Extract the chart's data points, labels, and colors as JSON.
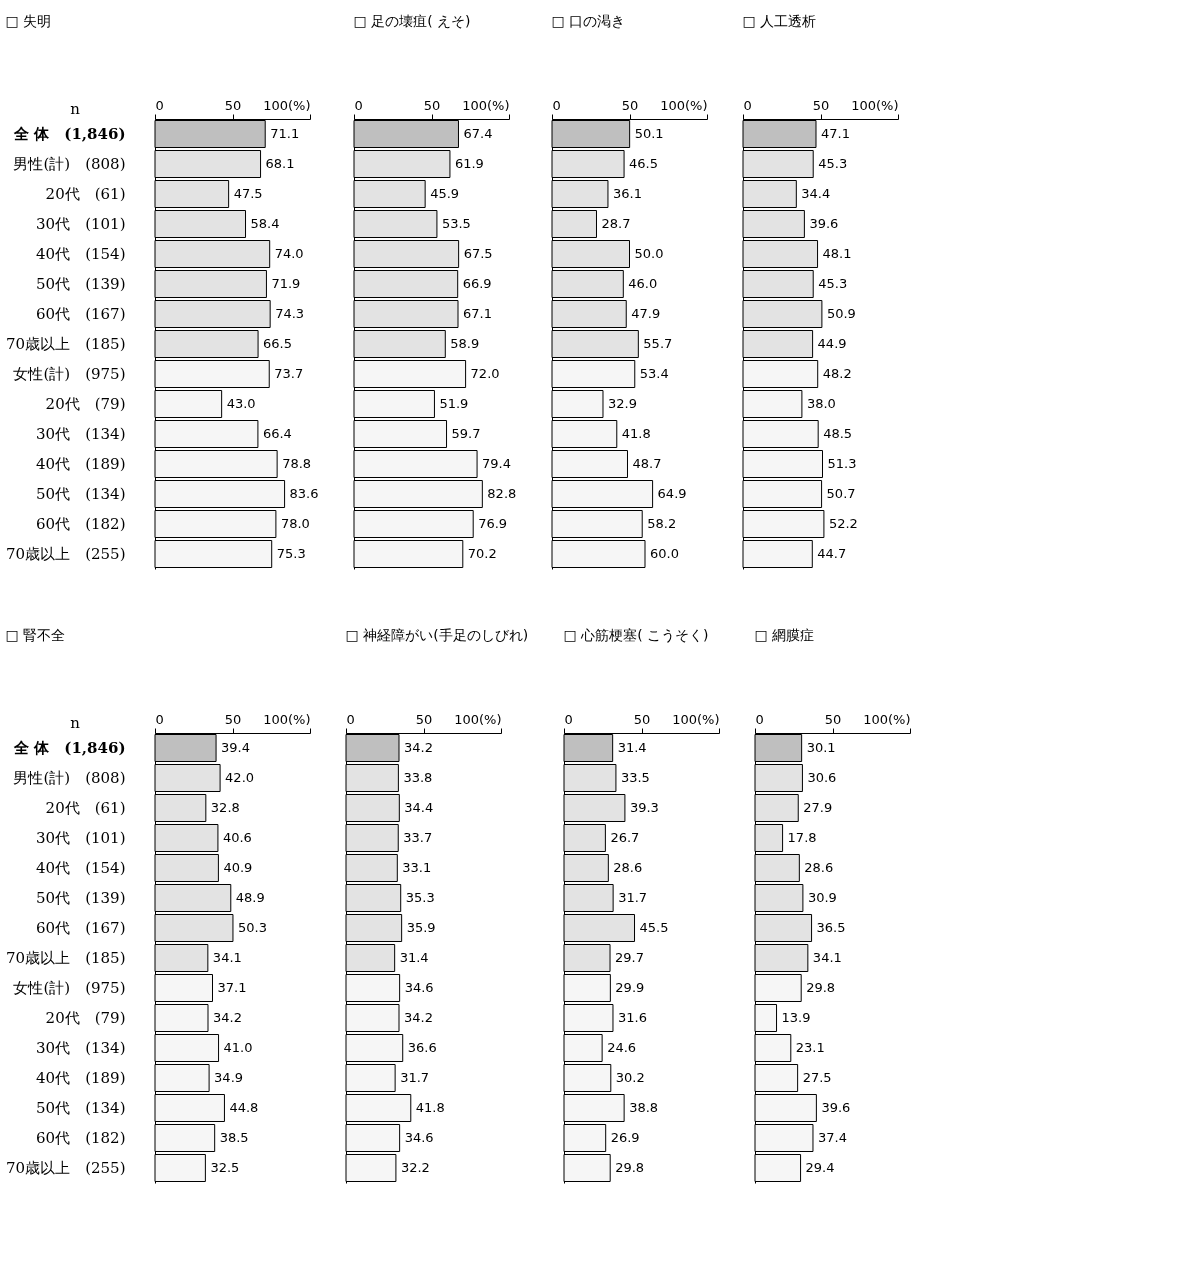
{
  "chart_data": [
    {
      "type": "bar",
      "orientation": "horizontal",
      "title": "□ 失明",
      "grid": false,
      "categories": [
        "全 体　(1,846)",
        "男性(計)　(808)",
        "20代　(61)",
        "30代　(101)",
        "40代　(154)",
        "50代　(139)",
        "60代　(167)",
        "70歳以上　(185)",
        "女性(計)　(975)",
        "20代　(79)",
        "30代　(134)",
        "40代　(189)",
        "50代　(134)",
        "60代　(182)",
        "70歳以上　(255)"
      ],
      "annotations": [
        "n"
      ],
      "xlim": [
        0,
        100
      ],
      "xticks": [
        0,
        50,
        {
          "value": 100,
          "label": "100(%)"
        }
      ],
      "colors": [
        "#bfbfbf",
        "#e3e3e3",
        "#e3e3e3",
        "#e3e3e3",
        "#e3e3e3",
        "#e3e3e3",
        "#e3e3e3",
        "#e3e3e3",
        "#f6f6f6",
        "#f6f6f6",
        "#f6f6f6",
        "#f6f6f6",
        "#f6f6f6",
        "#f6f6f6",
        "#f6f6f6"
      ],
      "values": [
        71.1,
        68.1,
        47.5,
        58.4,
        74.0,
        71.9,
        74.3,
        66.5,
        73.7,
        43.0,
        66.4,
        78.8,
        83.6,
        78.0,
        75.3
      ],
      "value_labels": [
        "71.1",
        "68.1",
        "47.5",
        "58.4",
        "74.0",
        "71.9",
        "74.3",
        "66.5",
        "73.7",
        "43.0",
        "66.4",
        "78.8",
        "83.6",
        "78.0",
        "75.3"
      ]
    },
    {
      "type": "bar",
      "orientation": "horizontal",
      "title": "□ 足の壊疽( えそ)",
      "grid": false,
      "tick_labels": "x",
      "xlim": [
        0,
        100
      ],
      "xticks": [
        0,
        50,
        {
          "value": 100,
          "label": "100(%)"
        }
      ],
      "colors": [
        "#bfbfbf",
        "#e3e3e3",
        "#e3e3e3",
        "#e3e3e3",
        "#e3e3e3",
        "#e3e3e3",
        "#e3e3e3",
        "#e3e3e3",
        "#f6f6f6",
        "#f6f6f6",
        "#f6f6f6",
        "#f6f6f6",
        "#f6f6f6",
        "#f6f6f6",
        "#f6f6f6"
      ],
      "values": [
        67.4,
        61.9,
        45.9,
        53.5,
        67.5,
        66.9,
        67.1,
        58.9,
        72.0,
        51.9,
        59.7,
        79.4,
        82.8,
        76.9,
        70.2
      ],
      "value_labels": [
        "67.4",
        "61.9",
        "45.9",
        "53.5",
        "67.5",
        "66.9",
        "67.1",
        "58.9",
        "72.0",
        "51.9",
        "59.7",
        "79.4",
        "82.8",
        "76.9",
        "70.2"
      ]
    },
    {
      "type": "bar",
      "orientation": "horizontal",
      "title": "□ 口の渇き",
      "grid": false,
      "tick_labels": "x",
      "xlim": [
        0,
        100
      ],
      "xticks": [
        0,
        50,
        {
          "value": 100,
          "label": "100(%)"
        }
      ],
      "colors": [
        "#bfbfbf",
        "#e3e3e3",
        "#e3e3e3",
        "#e3e3e3",
        "#e3e3e3",
        "#e3e3e3",
        "#e3e3e3",
        "#e3e3e3",
        "#f6f6f6",
        "#f6f6f6",
        "#f6f6f6",
        "#f6f6f6",
        "#f6f6f6",
        "#f6f6f6",
        "#f6f6f6"
      ],
      "values": [
        50.1,
        46.5,
        36.1,
        28.7,
        50.0,
        46.0,
        47.9,
        55.7,
        53.4,
        32.9,
        41.8,
        48.7,
        64.9,
        58.2,
        60.0
      ],
      "value_labels": [
        "50.1",
        "46.5",
        "36.1",
        "28.7",
        "50.0",
        "46.0",
        "47.9",
        "55.7",
        "53.4",
        "32.9",
        "41.8",
        "48.7",
        "64.9",
        "58.2",
        "60.0"
      ]
    },
    {
      "type": "bar",
      "orientation": "horizontal",
      "title": "□ 人工透析",
      "grid": false,
      "tick_labels": "x",
      "xlim": [
        0,
        100
      ],
      "xticks": [
        0,
        50,
        {
          "value": 100,
          "label": "100(%)"
        }
      ],
      "colors": [
        "#bfbfbf",
        "#e3e3e3",
        "#e3e3e3",
        "#e3e3e3",
        "#e3e3e3",
        "#e3e3e3",
        "#e3e3e3",
        "#e3e3e3",
        "#f6f6f6",
        "#f6f6f6",
        "#f6f6f6",
        "#f6f6f6",
        "#f6f6f6",
        "#f6f6f6",
        "#f6f6f6"
      ],
      "values": [
        47.1,
        45.3,
        34.4,
        39.6,
        48.1,
        45.3,
        50.9,
        44.9,
        48.2,
        38.0,
        48.5,
        51.3,
        50.7,
        52.2,
        44.7
      ],
      "value_labels": [
        "47.1",
        "45.3",
        "34.4",
        "39.6",
        "48.1",
        "45.3",
        "50.9",
        "44.9",
        "48.2",
        "38.0",
        "48.5",
        "51.3",
        "50.7",
        "52.2",
        "44.7"
      ]
    },
    {
      "type": "bar",
      "orientation": "horizontal",
      "title": "□ 腎不全",
      "grid": false,
      "categories": [
        "全 体　(1,846)",
        "男性(計)　(808)",
        "20代　(61)",
        "30代　(101)",
        "40代　(154)",
        "50代　(139)",
        "60代　(167)",
        "70歳以上　(185)",
        "女性(計)　(975)",
        "20代　(79)",
        "30代　(134)",
        "40代　(189)",
        "50代　(134)",
        "60代　(182)",
        "70歳以上　(255)"
      ],
      "annotations": [
        "n"
      ],
      "xlim": [
        0,
        100
      ],
      "xticks": [
        0,
        50,
        {
          "value": 100,
          "label": "100(%)"
        }
      ],
      "colors": [
        "#bfbfbf",
        "#e3e3e3",
        "#e3e3e3",
        "#e3e3e3",
        "#e3e3e3",
        "#e3e3e3",
        "#e3e3e3",
        "#e3e3e3",
        "#f6f6f6",
        "#f6f6f6",
        "#f6f6f6",
        "#f6f6f6",
        "#f6f6f6",
        "#f6f6f6",
        "#f6f6f6"
      ],
      "values": [
        39.4,
        42.0,
        32.8,
        40.6,
        40.9,
        48.9,
        50.3,
        34.1,
        37.1,
        34.2,
        41.0,
        34.9,
        44.8,
        38.5,
        32.5
      ],
      "value_labels": [
        "39.4",
        "42.0",
        "32.8",
        "40.6",
        "40.9",
        "48.9",
        "50.3",
        "34.1",
        "37.1",
        "34.2",
        "41.0",
        "34.9",
        "44.8",
        "38.5",
        "32.5"
      ]
    },
    {
      "type": "bar",
      "orientation": "horizontal",
      "title": "□ 神経障がい(手足のしびれ)",
      "grid": false,
      "tick_labels": "x",
      "xlim": [
        0,
        100
      ],
      "xticks": [
        0,
        50,
        {
          "value": 100,
          "label": "100(%)"
        }
      ],
      "colors": [
        "#bfbfbf",
        "#e3e3e3",
        "#e3e3e3",
        "#e3e3e3",
        "#e3e3e3",
        "#e3e3e3",
        "#e3e3e3",
        "#e3e3e3",
        "#f6f6f6",
        "#f6f6f6",
        "#f6f6f6",
        "#f6f6f6",
        "#f6f6f6",
        "#f6f6f6",
        "#f6f6f6"
      ],
      "values": [
        34.2,
        33.8,
        34.4,
        33.7,
        33.1,
        35.3,
        35.9,
        31.4,
        34.6,
        34.2,
        36.6,
        31.7,
        41.8,
        34.6,
        32.2
      ],
      "value_labels": [
        "34.2",
        "33.8",
        "34.4",
        "33.7",
        "33.1",
        "35.3",
        "35.9",
        "31.4",
        "34.6",
        "34.2",
        "36.6",
        "31.7",
        "41.8",
        "34.6",
        "32.2"
      ]
    },
    {
      "type": "bar",
      "orientation": "horizontal",
      "title": "□ 心筋梗塞( こうそく)",
      "grid": false,
      "tick_labels": "x",
      "xlim": [
        0,
        100
      ],
      "xticks": [
        0,
        50,
        {
          "value": 100,
          "label": "100(%)"
        }
      ],
      "colors": [
        "#bfbfbf",
        "#e3e3e3",
        "#e3e3e3",
        "#e3e3e3",
        "#e3e3e3",
        "#e3e3e3",
        "#e3e3e3",
        "#e3e3e3",
        "#f6f6f6",
        "#f6f6f6",
        "#f6f6f6",
        "#f6f6f6",
        "#f6f6f6",
        "#f6f6f6",
        "#f6f6f6"
      ],
      "values": [
        31.4,
        33.5,
        39.3,
        26.7,
        28.6,
        31.7,
        45.5,
        29.7,
        29.9,
        31.6,
        24.6,
        30.2,
        38.8,
        26.9,
        29.8
      ],
      "value_labels": [
        "31.4",
        "33.5",
        "39.3",
        "26.7",
        "28.6",
        "31.7",
        "45.5",
        "29.7",
        "29.9",
        "31.6",
        "24.6",
        "30.2",
        "38.8",
        "26.9",
        "29.8"
      ]
    },
    {
      "type": "bar",
      "orientation": "horizontal",
      "title": "□ 網膜症",
      "grid": false,
      "tick_labels": "x",
      "xlim": [
        0,
        100
      ],
      "xticks": [
        0,
        50,
        {
          "value": 100,
          "label": "100(%)"
        }
      ],
      "colors": [
        "#bfbfbf",
        "#e3e3e3",
        "#e3e3e3",
        "#e3e3e3",
        "#e3e3e3",
        "#e3e3e3",
        "#e3e3e3",
        "#e3e3e3",
        "#f6f6f6",
        "#f6f6f6",
        "#f6f6f6",
        "#f6f6f6",
        "#f6f6f6",
        "#f6f6f6",
        "#f6f6f6"
      ],
      "values": [
        30.1,
        30.6,
        27.9,
        17.8,
        28.6,
        30.9,
        36.5,
        34.1,
        29.8,
        13.9,
        23.1,
        27.5,
        39.6,
        37.4,
        29.4
      ],
      "value_labels": [
        "30.1",
        "30.6",
        "27.9",
        "17.8",
        "28.6",
        "30.9",
        "36.5",
        "34.1",
        "29.8",
        "13.9",
        "23.1",
        "27.5",
        "39.6",
        "37.4",
        "29.4"
      ]
    }
  ]
}
